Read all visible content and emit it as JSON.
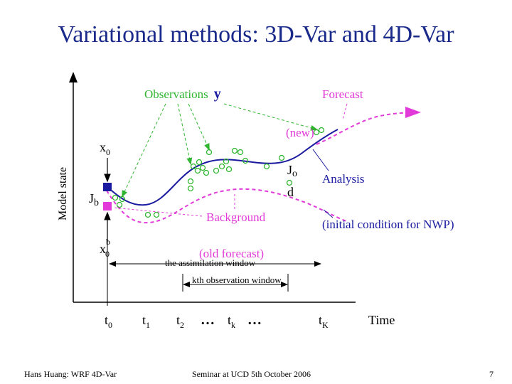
{
  "slide": {
    "title": "Variational methods: 3D-Var and 4D-Var"
  },
  "diagram": {
    "y_axis_label": "Model state",
    "x_axis_label": "Time",
    "labels": {
      "observations": "Observations",
      "obs_symbol": "y",
      "forecast": "Forecast",
      "new": "(new)",
      "analysis": "Analysis",
      "jo": "Jo",
      "jb": "Jb",
      "d": "d",
      "background": "Background",
      "initial_condition": "(initial condition for NWP)",
      "old_forecast": "(old forecast)",
      "assimilation_window": "the assimilation window",
      "kth_window": "kth observation window",
      "x0": "x",
      "x0_sub": "0",
      "x0b": "x",
      "x0b_sub": "0",
      "x0b_sup": "b"
    },
    "ticks": {
      "t0": "t",
      "t0_sub": "0",
      "t1": "t",
      "t1_sub": "1",
      "t2": "t",
      "t2_sub": "2",
      "dots1": "…",
      "tk": "t",
      "tk_sub": "k",
      "dots2": "…",
      "tK": "t",
      "tK_sub": "K"
    },
    "colors": {
      "observations": "#2fb52f",
      "background": "#e23ad8",
      "analysis": "#1a1aa0"
    }
  },
  "footer": {
    "left": "Hans Huang: WRF 4D-Var",
    "center": "Seminar at UCD 5th October 2006",
    "page": "7"
  }
}
